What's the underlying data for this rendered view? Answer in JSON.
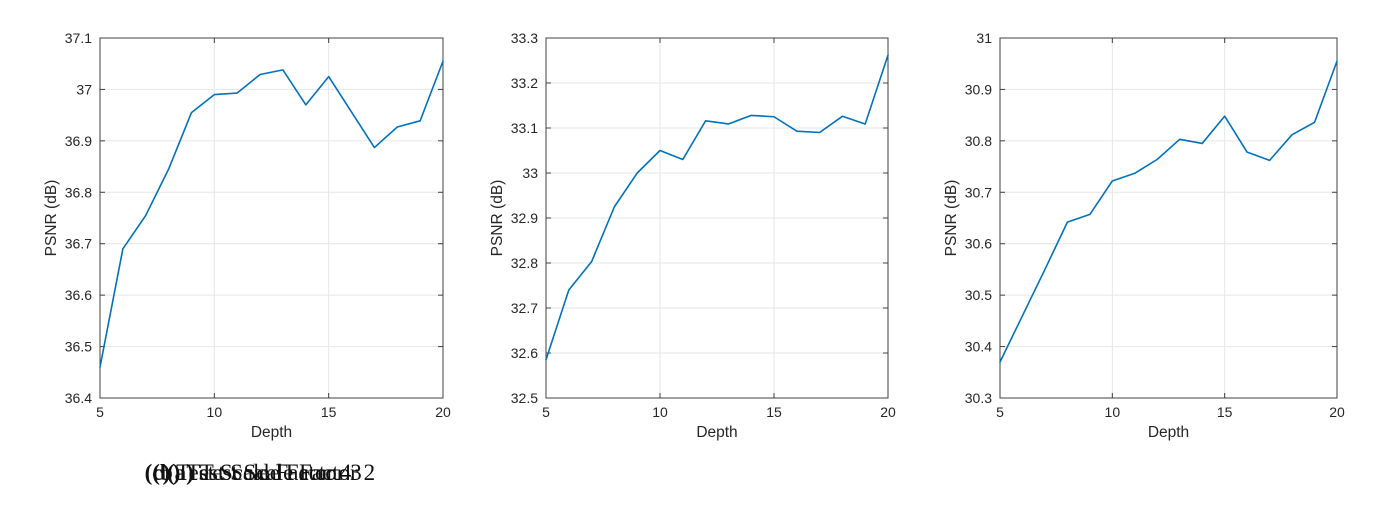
{
  "style": {
    "background": "#ffffff",
    "line_color": "#0072BD",
    "axis_color": "#404040",
    "grid_color": "#e6e6e6",
    "text_color": "#262626"
  },
  "chart_data": [
    {
      "type": "line",
      "caption_label": "(a)",
      "caption_text": "Test Scale Factor 2",
      "xlabel": "Depth",
      "ylabel": "PSNR (dB)",
      "xlim": [
        5,
        20
      ],
      "ylim": [
        36.4,
        37.1
      ],
      "x_ticks": [
        5,
        10,
        15,
        20
      ],
      "x_tick_labels": [
        "5",
        "10",
        "15",
        "20"
      ],
      "y_ticks": [
        36.4,
        36.5,
        36.6,
        36.7,
        36.8,
        36.9,
        37.0,
        37.1
      ],
      "y_tick_labels": [
        "36.4",
        "36.5",
        "36.6",
        "36.7",
        "36.8",
        "36.9",
        "37",
        "37.1"
      ],
      "grid": true,
      "legend": null,
      "x": [
        5,
        6,
        7,
        8,
        9,
        10,
        11,
        12,
        13,
        14,
        15,
        16,
        17,
        18,
        19,
        20
      ],
      "y": [
        36.46,
        36.69,
        36.755,
        36.845,
        36.955,
        36.99,
        36.993,
        37.029,
        37.038,
        36.97,
        37.025,
        36.956,
        36.887,
        36.927,
        36.939,
        37.055
      ]
    },
    {
      "type": "line",
      "caption_label": "(b)",
      "caption_text": "Test Scale Factor 3",
      "xlabel": "Depth",
      "ylabel": "PSNR (dB)",
      "xlim": [
        5,
        20
      ],
      "ylim": [
        32.5,
        33.3
      ],
      "x_ticks": [
        5,
        10,
        15,
        20
      ],
      "x_tick_labels": [
        "5",
        "10",
        "15",
        "20"
      ],
      "y_ticks": [
        32.5,
        32.6,
        32.7,
        32.8,
        32.9,
        33.0,
        33.1,
        33.2,
        33.3
      ],
      "y_tick_labels": [
        "32.5",
        "32.6",
        "32.7",
        "32.8",
        "32.9",
        "33",
        "33.1",
        "33.2",
        "33.3"
      ],
      "grid": true,
      "legend": null,
      "x": [
        5,
        6,
        7,
        8,
        9,
        10,
        11,
        12,
        13,
        14,
        15,
        16,
        17,
        18,
        19,
        20
      ],
      "y": [
        32.585,
        32.74,
        32.803,
        32.925,
        33.0,
        33.05,
        33.03,
        33.116,
        33.109,
        33.128,
        33.125,
        33.093,
        33.09,
        33.126,
        33.109,
        33.262
      ]
    },
    {
      "type": "line",
      "caption_label": "(c)",
      "caption_text": "Test Scale Factor 4",
      "xlabel": "Depth",
      "ylabel": "PSNR (dB)",
      "xlim": [
        5,
        20
      ],
      "ylim": [
        30.3,
        31.0
      ],
      "x_ticks": [
        5,
        10,
        15,
        20
      ],
      "x_tick_labels": [
        "5",
        "10",
        "15",
        "20"
      ],
      "y_ticks": [
        30.3,
        30.4,
        30.5,
        30.6,
        30.7,
        30.8,
        30.9,
        31.0
      ],
      "y_tick_labels": [
        "30.3",
        "30.4",
        "30.5",
        "30.6",
        "30.7",
        "30.8",
        "30.9",
        "31"
      ],
      "grid": true,
      "legend": null,
      "x": [
        5,
        6,
        7,
        8,
        9,
        10,
        11,
        12,
        13,
        14,
        15,
        16,
        17,
        18,
        19,
        20
      ],
      "y": [
        30.37,
        30.46,
        30.55,
        30.642,
        30.657,
        30.722,
        30.737,
        30.764,
        30.803,
        30.795,
        30.848,
        30.778,
        30.762,
        30.812,
        30.836,
        30.955
      ]
    }
  ]
}
